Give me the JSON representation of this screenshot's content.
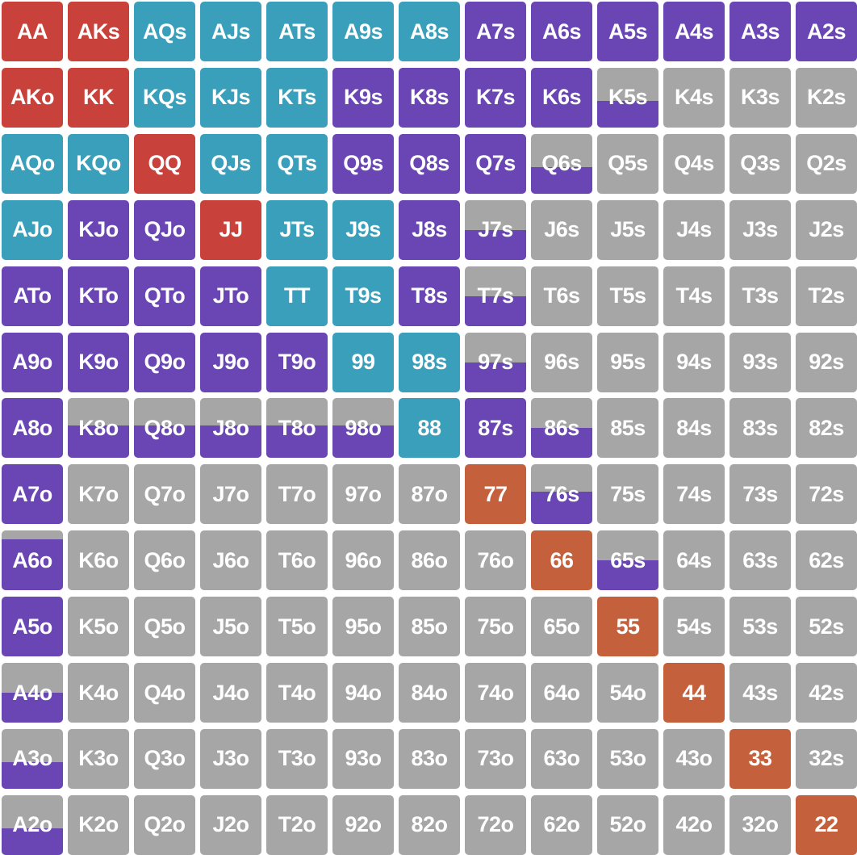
{
  "legend_colors": {
    "raise": "#c9413b",
    "call_3bet": "#3a9fba",
    "mixed": "#6a45b4",
    "small_pair": "#c4603b",
    "fold": "#a6a6a6"
  },
  "rows": [
    [
      {
        "label": "AA",
        "color": "raise"
      },
      {
        "label": "AKs",
        "color": "raise"
      },
      {
        "label": "AQs",
        "color": "call_3bet"
      },
      {
        "label": "AJs",
        "color": "call_3bet"
      },
      {
        "label": "ATs",
        "color": "call_3bet"
      },
      {
        "label": "A9s",
        "color": "call_3bet"
      },
      {
        "label": "A8s",
        "color": "call_3bet"
      },
      {
        "label": "A7s",
        "color": "mixed"
      },
      {
        "label": "A6s",
        "color": "mixed"
      },
      {
        "label": "A5s",
        "color": "mixed"
      },
      {
        "label": "A4s",
        "color": "mixed"
      },
      {
        "label": "A3s",
        "color": "mixed"
      },
      {
        "label": "A2s",
        "color": "mixed"
      }
    ],
    [
      {
        "label": "AKo",
        "color": "raise"
      },
      {
        "label": "KK",
        "color": "raise"
      },
      {
        "label": "KQs",
        "color": "call_3bet"
      },
      {
        "label": "KJs",
        "color": "call_3bet"
      },
      {
        "label": "KTs",
        "color": "call_3bet"
      },
      {
        "label": "K9s",
        "color": "mixed"
      },
      {
        "label": "K8s",
        "color": "mixed"
      },
      {
        "label": "K7s",
        "color": "mixed"
      },
      {
        "label": "K6s",
        "color": "mixed"
      },
      {
        "label": "K5s",
        "color": "fold",
        "part": "mixed",
        "frac": 0.45
      },
      {
        "label": "K4s",
        "color": "fold"
      },
      {
        "label": "K3s",
        "color": "fold"
      },
      {
        "label": "K2s",
        "color": "fold"
      }
    ],
    [
      {
        "label": "AQo",
        "color": "call_3bet"
      },
      {
        "label": "KQo",
        "color": "call_3bet"
      },
      {
        "label": "QQ",
        "color": "raise"
      },
      {
        "label": "QJs",
        "color": "call_3bet"
      },
      {
        "label": "QTs",
        "color": "call_3bet"
      },
      {
        "label": "Q9s",
        "color": "mixed"
      },
      {
        "label": "Q8s",
        "color": "mixed"
      },
      {
        "label": "Q7s",
        "color": "mixed"
      },
      {
        "label": "Q6s",
        "color": "fold",
        "part": "mixed",
        "frac": 0.45
      },
      {
        "label": "Q5s",
        "color": "fold"
      },
      {
        "label": "Q4s",
        "color": "fold"
      },
      {
        "label": "Q3s",
        "color": "fold"
      },
      {
        "label": "Q2s",
        "color": "fold"
      }
    ],
    [
      {
        "label": "AJo",
        "color": "call_3bet"
      },
      {
        "label": "KJo",
        "color": "mixed"
      },
      {
        "label": "QJo",
        "color": "mixed"
      },
      {
        "label": "JJ",
        "color": "raise"
      },
      {
        "label": "JTs",
        "color": "call_3bet"
      },
      {
        "label": "J9s",
        "color": "call_3bet"
      },
      {
        "label": "J8s",
        "color": "mixed"
      },
      {
        "label": "J7s",
        "color": "fold",
        "part": "mixed",
        "frac": 0.5
      },
      {
        "label": "J6s",
        "color": "fold"
      },
      {
        "label": "J5s",
        "color": "fold"
      },
      {
        "label": "J4s",
        "color": "fold"
      },
      {
        "label": "J3s",
        "color": "fold"
      },
      {
        "label": "J2s",
        "color": "fold"
      }
    ],
    [
      {
        "label": "ATo",
        "color": "mixed"
      },
      {
        "label": "KTo",
        "color": "mixed"
      },
      {
        "label": "QTo",
        "color": "mixed"
      },
      {
        "label": "JTo",
        "color": "mixed"
      },
      {
        "label": "TT",
        "color": "call_3bet"
      },
      {
        "label": "T9s",
        "color": "call_3bet"
      },
      {
        "label": "T8s",
        "color": "mixed"
      },
      {
        "label": "T7s",
        "color": "fold",
        "part": "mixed",
        "frac": 0.5
      },
      {
        "label": "T6s",
        "color": "fold"
      },
      {
        "label": "T5s",
        "color": "fold"
      },
      {
        "label": "T4s",
        "color": "fold"
      },
      {
        "label": "T3s",
        "color": "fold"
      },
      {
        "label": "T2s",
        "color": "fold"
      }
    ],
    [
      {
        "label": "A9o",
        "color": "mixed"
      },
      {
        "label": "K9o",
        "color": "mixed"
      },
      {
        "label": "Q9o",
        "color": "mixed"
      },
      {
        "label": "J9o",
        "color": "mixed"
      },
      {
        "label": "T9o",
        "color": "mixed"
      },
      {
        "label": "99",
        "color": "call_3bet"
      },
      {
        "label": "98s",
        "color": "call_3bet"
      },
      {
        "label": "97s",
        "color": "fold",
        "part": "mixed",
        "frac": 0.5
      },
      {
        "label": "96s",
        "color": "fold"
      },
      {
        "label": "95s",
        "color": "fold"
      },
      {
        "label": "94s",
        "color": "fold"
      },
      {
        "label": "93s",
        "color": "fold"
      },
      {
        "label": "92s",
        "color": "fold"
      }
    ],
    [
      {
        "label": "A8o",
        "color": "mixed"
      },
      {
        "label": "K8o",
        "color": "fold",
        "part": "mixed",
        "frac": 0.55
      },
      {
        "label": "Q8o",
        "color": "fold",
        "part": "mixed",
        "frac": 0.55
      },
      {
        "label": "J8o",
        "color": "fold",
        "part": "mixed",
        "frac": 0.55
      },
      {
        "label": "T8o",
        "color": "fold",
        "part": "mixed",
        "frac": 0.55
      },
      {
        "label": "98o",
        "color": "fold",
        "part": "mixed",
        "frac": 0.55
      },
      {
        "label": "88",
        "color": "call_3bet"
      },
      {
        "label": "87s",
        "color": "mixed"
      },
      {
        "label": "86s",
        "color": "fold",
        "part": "mixed",
        "frac": 0.5
      },
      {
        "label": "85s",
        "color": "fold"
      },
      {
        "label": "84s",
        "color": "fold"
      },
      {
        "label": "83s",
        "color": "fold"
      },
      {
        "label": "82s",
        "color": "fold"
      }
    ],
    [
      {
        "label": "A7o",
        "color": "mixed"
      },
      {
        "label": "K7o",
        "color": "fold"
      },
      {
        "label": "Q7o",
        "color": "fold"
      },
      {
        "label": "J7o",
        "color": "fold"
      },
      {
        "label": "T7o",
        "color": "fold"
      },
      {
        "label": "97o",
        "color": "fold"
      },
      {
        "label": "87o",
        "color": "fold"
      },
      {
        "label": "77",
        "color": "small_pair"
      },
      {
        "label": "76s",
        "color": "fold",
        "part": "mixed",
        "frac": 0.55
      },
      {
        "label": "75s",
        "color": "fold"
      },
      {
        "label": "74s",
        "color": "fold"
      },
      {
        "label": "73s",
        "color": "fold"
      },
      {
        "label": "72s",
        "color": "fold"
      }
    ],
    [
      {
        "label": "A6o",
        "color": "fold",
        "part": "mixed",
        "frac": 0.85
      },
      {
        "label": "K6o",
        "color": "fold"
      },
      {
        "label": "Q6o",
        "color": "fold"
      },
      {
        "label": "J6o",
        "color": "fold"
      },
      {
        "label": "T6o",
        "color": "fold"
      },
      {
        "label": "96o",
        "color": "fold"
      },
      {
        "label": "86o",
        "color": "fold"
      },
      {
        "label": "76o",
        "color": "fold"
      },
      {
        "label": "66",
        "color": "small_pair"
      },
      {
        "label": "65s",
        "color": "fold",
        "part": "mixed",
        "frac": 0.5
      },
      {
        "label": "64s",
        "color": "fold"
      },
      {
        "label": "63s",
        "color": "fold"
      },
      {
        "label": "62s",
        "color": "fold"
      }
    ],
    [
      {
        "label": "A5o",
        "color": "mixed"
      },
      {
        "label": "K5o",
        "color": "fold"
      },
      {
        "label": "Q5o",
        "color": "fold"
      },
      {
        "label": "J5o",
        "color": "fold"
      },
      {
        "label": "T5o",
        "color": "fold"
      },
      {
        "label": "95o",
        "color": "fold"
      },
      {
        "label": "85o",
        "color": "fold"
      },
      {
        "label": "75o",
        "color": "fold"
      },
      {
        "label": "65o",
        "color": "fold"
      },
      {
        "label": "55",
        "color": "small_pair"
      },
      {
        "label": "54s",
        "color": "fold"
      },
      {
        "label": "53s",
        "color": "fold"
      },
      {
        "label": "52s",
        "color": "fold"
      }
    ],
    [
      {
        "label": "A4o",
        "color": "fold",
        "part": "mixed",
        "frac": 0.5
      },
      {
        "label": "K4o",
        "color": "fold"
      },
      {
        "label": "Q4o",
        "color": "fold"
      },
      {
        "label": "J4o",
        "color": "fold"
      },
      {
        "label": "T4o",
        "color": "fold"
      },
      {
        "label": "94o",
        "color": "fold"
      },
      {
        "label": "84o",
        "color": "fold"
      },
      {
        "label": "74o",
        "color": "fold"
      },
      {
        "label": "64o",
        "color": "fold"
      },
      {
        "label": "54o",
        "color": "fold"
      },
      {
        "label": "44",
        "color": "small_pair"
      },
      {
        "label": "43s",
        "color": "fold"
      },
      {
        "label": "42s",
        "color": "fold"
      }
    ],
    [
      {
        "label": "A3o",
        "color": "fold",
        "part": "mixed",
        "frac": 0.45
      },
      {
        "label": "K3o",
        "color": "fold"
      },
      {
        "label": "Q3o",
        "color": "fold"
      },
      {
        "label": "J3o",
        "color": "fold"
      },
      {
        "label": "T3o",
        "color": "fold"
      },
      {
        "label": "93o",
        "color": "fold"
      },
      {
        "label": "83o",
        "color": "fold"
      },
      {
        "label": "73o",
        "color": "fold"
      },
      {
        "label": "63o",
        "color": "fold"
      },
      {
        "label": "53o",
        "color": "fold"
      },
      {
        "label": "43o",
        "color": "fold"
      },
      {
        "label": "33",
        "color": "small_pair"
      },
      {
        "label": "32s",
        "color": "fold"
      }
    ],
    [
      {
        "label": "A2o",
        "color": "fold",
        "part": "mixed",
        "frac": 0.45
      },
      {
        "label": "K2o",
        "color": "fold"
      },
      {
        "label": "Q2o",
        "color": "fold"
      },
      {
        "label": "J2o",
        "color": "fold"
      },
      {
        "label": "T2o",
        "color": "fold"
      },
      {
        "label": "92o",
        "color": "fold"
      },
      {
        "label": "82o",
        "color": "fold"
      },
      {
        "label": "72o",
        "color": "fold"
      },
      {
        "label": "62o",
        "color": "fold"
      },
      {
        "label": "52o",
        "color": "fold"
      },
      {
        "label": "42o",
        "color": "fold"
      },
      {
        "label": "32o",
        "color": "fold"
      },
      {
        "label": "22",
        "color": "small_pair"
      }
    ]
  ]
}
